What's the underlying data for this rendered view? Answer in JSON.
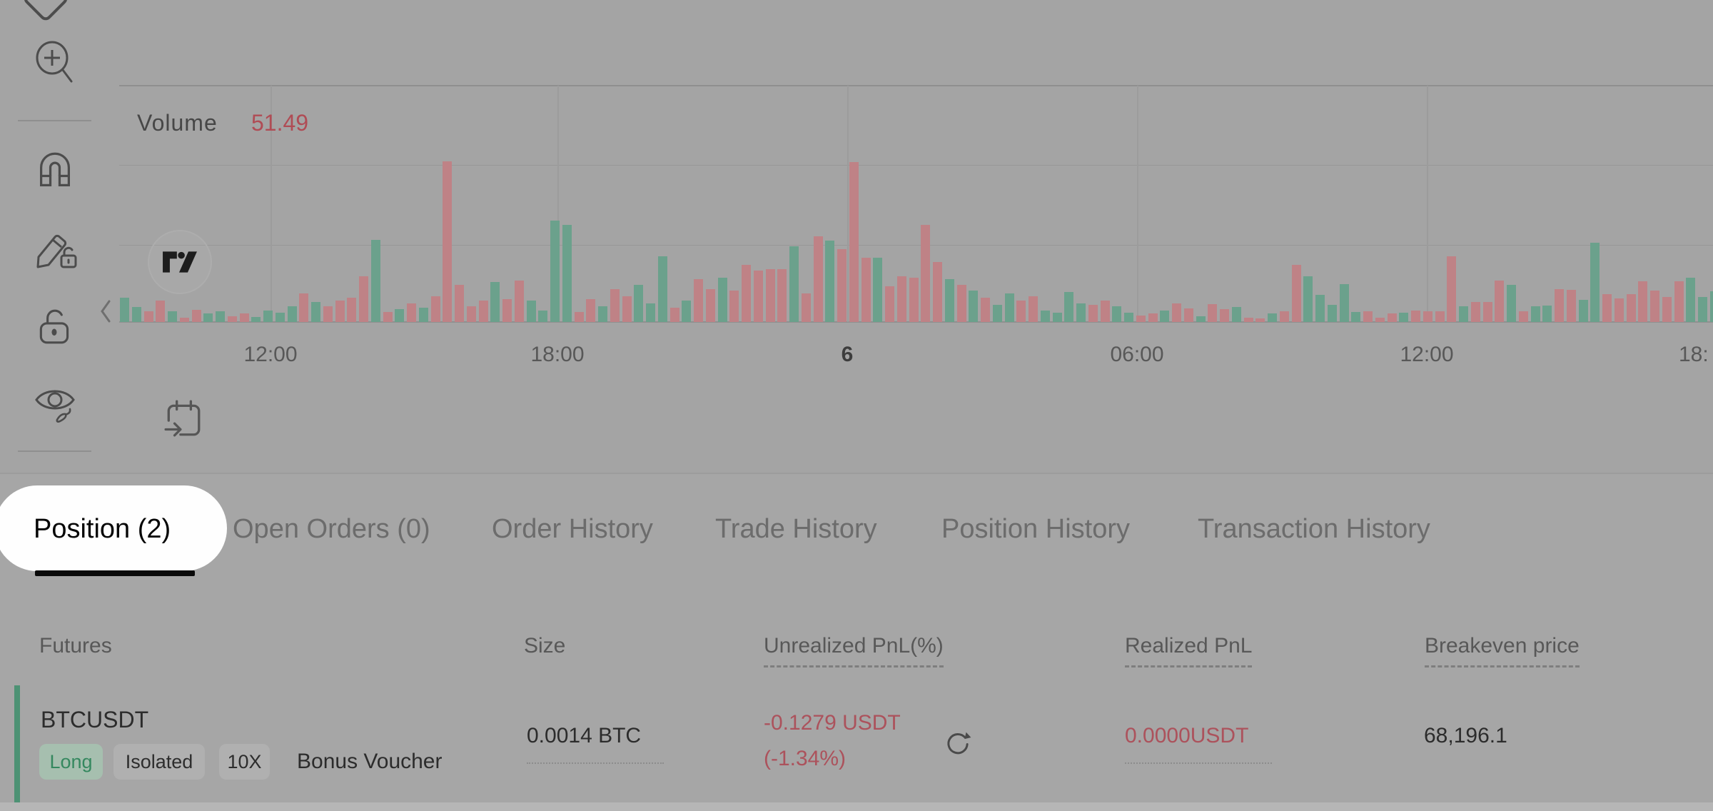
{
  "chart": {
    "volume_label": "Volume",
    "volume_value": "51.49",
    "colors": {
      "up_bar": "#6ba18c",
      "down_bar": "#bf8286",
      "volume_value_text": "#b04c55"
    },
    "time_labels": [
      "12:00",
      "18:00",
      "6",
      "06:00",
      "12:00",
      "18:"
    ],
    "chart_data": {
      "type": "bar",
      "title": "Volume",
      "latest_value": 51.49,
      "x_tick_labels": [
        "12:00",
        "18:00",
        "6",
        "06:00",
        "12:00",
        "18:"
      ],
      "ylim": [
        0,
        240
      ],
      "grid": true,
      "legend_position": "none",
      "bars_unit": "pixel height, up=teal, down=red",
      "bars": [
        [
          "g",
          34
        ],
        [
          "g",
          21
        ],
        [
          "r",
          15
        ],
        [
          "r",
          30
        ],
        [
          "g",
          15
        ],
        [
          "r",
          6
        ],
        [
          "r",
          17
        ],
        [
          "g",
          12
        ],
        [
          "g",
          15
        ],
        [
          "r",
          8
        ],
        [
          "r",
          12
        ],
        [
          "g",
          7
        ],
        [
          "g",
          16
        ],
        [
          "g",
          13
        ],
        [
          "g",
          22
        ],
        [
          "r",
          40
        ],
        [
          "g",
          28
        ],
        [
          "r",
          22
        ],
        [
          "r",
          30
        ],
        [
          "r",
          34
        ],
        [
          "r",
          64
        ],
        [
          "g",
          115
        ],
        [
          "r",
          14
        ],
        [
          "g",
          18
        ],
        [
          "r",
          26
        ],
        [
          "g",
          20
        ],
        [
          "r",
          36
        ],
        [
          "r",
          225
        ],
        [
          "r",
          52
        ],
        [
          "r",
          22
        ],
        [
          "r",
          30
        ],
        [
          "g",
          56
        ],
        [
          "r",
          32
        ],
        [
          "r",
          58
        ],
        [
          "g",
          30
        ],
        [
          "g",
          16
        ],
        [
          "g",
          142
        ],
        [
          "g",
          136
        ],
        [
          "r",
          14
        ],
        [
          "r",
          32
        ],
        [
          "g",
          22
        ],
        [
          "r",
          46
        ],
        [
          "r",
          36
        ],
        [
          "g",
          52
        ],
        [
          "g",
          26
        ],
        [
          "g",
          92
        ],
        [
          "r",
          20
        ],
        [
          "g",
          30
        ],
        [
          "r",
          60
        ],
        [
          "r",
          46
        ],
        [
          "g",
          62
        ],
        [
          "r",
          44
        ],
        [
          "r",
          80
        ],
        [
          "r",
          72
        ],
        [
          "r",
          74
        ],
        [
          "r",
          74
        ],
        [
          "g",
          106
        ],
        [
          "r",
          40
        ],
        [
          "r",
          120
        ],
        [
          "g",
          114
        ],
        [
          "r",
          102
        ],
        [
          "r",
          224
        ],
        [
          "r",
          90
        ],
        [
          "g",
          90
        ],
        [
          "r",
          50
        ],
        [
          "r",
          64
        ],
        [
          "r",
          62
        ],
        [
          "r",
          136
        ],
        [
          "r",
          84
        ],
        [
          "g",
          60
        ],
        [
          "r",
          52
        ],
        [
          "g",
          44
        ],
        [
          "r",
          34
        ],
        [
          "g",
          24
        ],
        [
          "g",
          40
        ],
        [
          "r",
          30
        ],
        [
          "r",
          36
        ],
        [
          "g",
          16
        ],
        [
          "g",
          13
        ],
        [
          "g",
          42
        ],
        [
          "g",
          26
        ],
        [
          "r",
          24
        ],
        [
          "r",
          30
        ],
        [
          "g",
          22
        ],
        [
          "g",
          13
        ],
        [
          "r",
          9
        ],
        [
          "r",
          12
        ],
        [
          "g",
          16
        ],
        [
          "r",
          26
        ],
        [
          "r",
          19
        ],
        [
          "g",
          8
        ],
        [
          "r",
          25
        ],
        [
          "r",
          18
        ],
        [
          "g",
          21
        ],
        [
          "r",
          6
        ],
        [
          "r",
          5
        ],
        [
          "g",
          12
        ],
        [
          "r",
          15
        ],
        [
          "r",
          80
        ],
        [
          "g",
          64
        ],
        [
          "g",
          38
        ],
        [
          "g",
          24
        ],
        [
          "g",
          53
        ],
        [
          "g",
          14
        ],
        [
          "r",
          15
        ],
        [
          "r",
          6
        ],
        [
          "r",
          12
        ],
        [
          "g",
          13
        ],
        [
          "r",
          16
        ],
        [
          "r",
          15
        ],
        [
          "r",
          15
        ],
        [
          "r",
          92
        ],
        [
          "g",
          22
        ],
        [
          "r",
          28
        ],
        [
          "r",
          28
        ],
        [
          "r",
          58
        ],
        [
          "g",
          52
        ],
        [
          "r",
          15
        ],
        [
          "g",
          22
        ],
        [
          "g",
          23
        ],
        [
          "r",
          46
        ],
        [
          "r",
          45
        ],
        [
          "g",
          31
        ],
        [
          "g",
          111
        ],
        [
          "r",
          39
        ],
        [
          "r",
          33
        ],
        [
          "r",
          39
        ],
        [
          "r",
          57
        ],
        [
          "r",
          44
        ],
        [
          "r",
          35
        ],
        [
          "r",
          57
        ],
        [
          "g",
          62
        ],
        [
          "g",
          35
        ],
        [
          "g",
          43
        ]
      ]
    }
  },
  "toolbar": {
    "icons": [
      "tag",
      "zoom-in",
      "magnet",
      "draw-lock",
      "lock-all",
      "hide-drawings",
      "go-to-date",
      "collapse-pane",
      "tradingview-logo",
      "refresh-pnl"
    ]
  },
  "tabs": {
    "items": [
      {
        "label": "Position (2)",
        "active": true
      },
      {
        "label": "Open Orders (0)",
        "active": false
      },
      {
        "label": "Order History",
        "active": false
      },
      {
        "label": "Trade History",
        "active": false
      },
      {
        "label": "Position History",
        "active": false
      },
      {
        "label": "Transaction History",
        "active": false
      }
    ]
  },
  "positions_table": {
    "columns": [
      {
        "label": "Futures"
      },
      {
        "label": "Size"
      },
      {
        "label": "Unrealized PnL(%)"
      },
      {
        "label": "Realized PnL"
      },
      {
        "label": "Breakeven price"
      }
    ],
    "row": {
      "symbol": "BTCUSDT",
      "badges": {
        "side": "Long",
        "margin_mode": "Isolated",
        "leverage": "10X"
      },
      "bonus": "Bonus Voucher",
      "size": "0.0014 BTC",
      "unrealized_pnl": "-0.1279 USDT",
      "unrealized_pct": "(-1.34%)",
      "realized_pnl": "0.0000USDT",
      "breakeven_price": "68,196.1"
    }
  }
}
